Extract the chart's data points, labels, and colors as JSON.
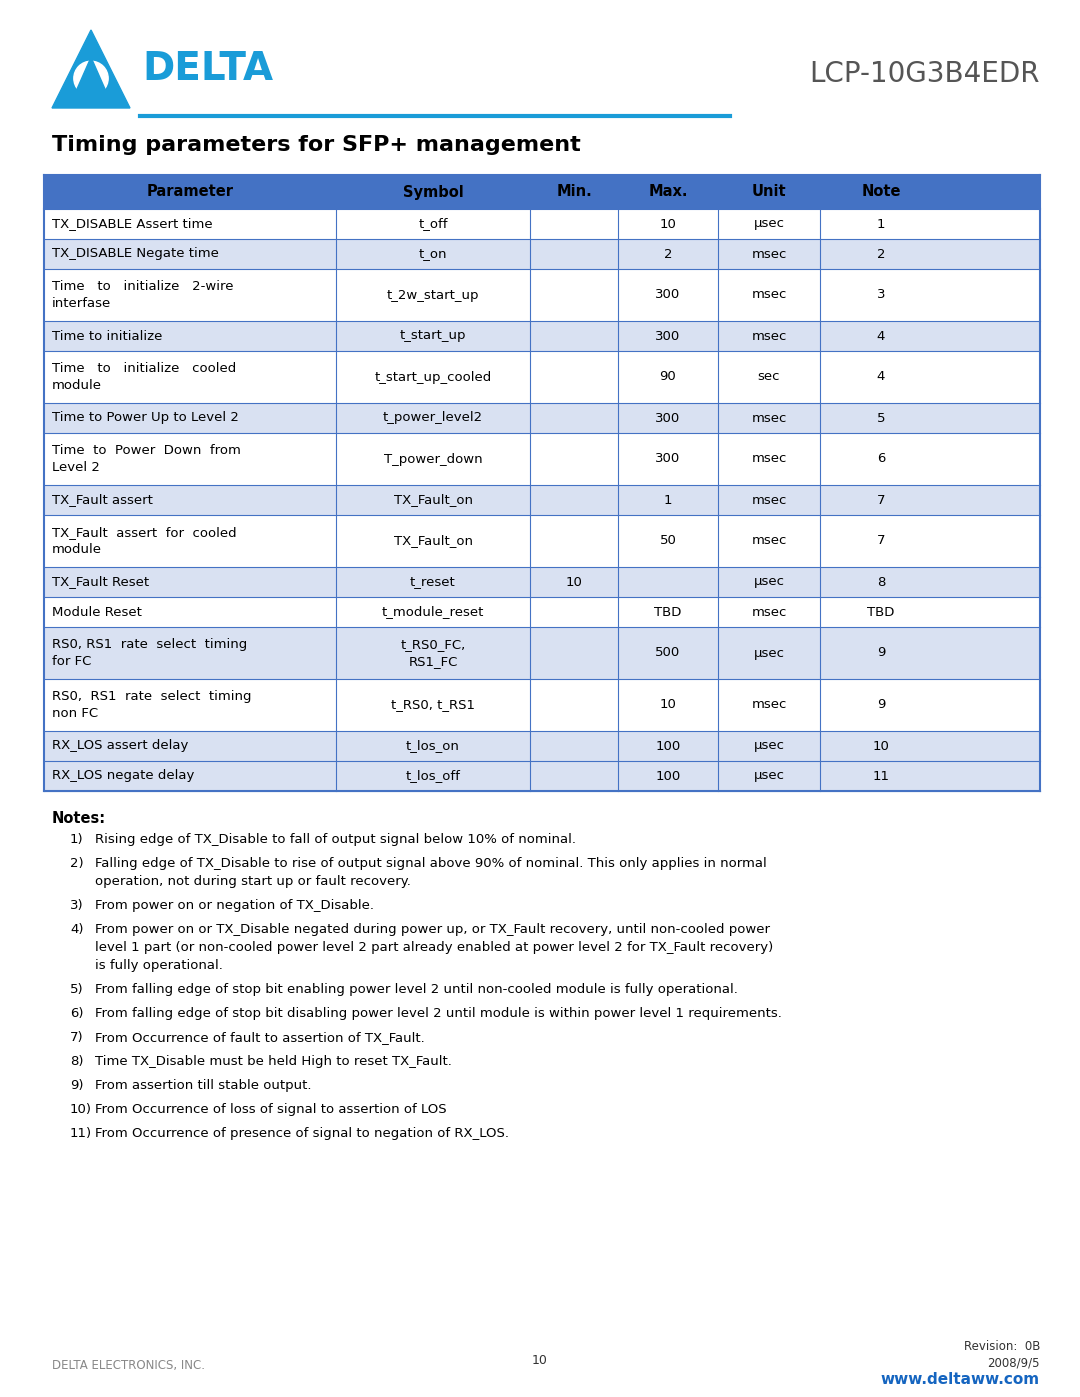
{
  "title": "Timing parameters for SFP+ management",
  "model": "LCP-10G3B4EDR",
  "header": [
    "Parameter",
    "Symbol",
    "Min.",
    "Max.",
    "Unit",
    "Note"
  ],
  "rows": [
    [
      "TX_DISABLE Assert time",
      "t_off",
      "",
      "10",
      "µsec",
      "1"
    ],
    [
      "TX_DISABLE Negate time",
      "t_on",
      "",
      "2",
      "msec",
      "2"
    ],
    [
      "Time   to   initialize   2-wire\ninterfase",
      "t_2w_start_up",
      "",
      "300",
      "msec",
      "3"
    ],
    [
      "Time to initialize",
      "t_start_up",
      "",
      "300",
      "msec",
      "4"
    ],
    [
      "Time   to   initialize   cooled\nmodule",
      "t_start_up_cooled",
      "",
      "90",
      "sec",
      "4"
    ],
    [
      "Time to Power Up to Level 2",
      "t_power_level2",
      "",
      "300",
      "msec",
      "5"
    ],
    [
      "Time  to  Power  Down  from\nLevel 2",
      "T_power_down",
      "",
      "300",
      "msec",
      "6"
    ],
    [
      "TX_Fault assert",
      "TX_Fault_on",
      "",
      "1",
      "msec",
      "7"
    ],
    [
      "TX_Fault  assert  for  cooled\nmodule",
      "TX_Fault_on",
      "",
      "50",
      "msec",
      "7"
    ],
    [
      "TX_Fault Reset",
      "t_reset",
      "10",
      "",
      "µsec",
      "8"
    ],
    [
      "Module Reset",
      "t_module_reset",
      "",
      "TBD",
      "msec",
      "TBD"
    ],
    [
      "RS0, RS1  rate  select  timing\nfor FC",
      "t_RS0_FC,\nRS1_FC",
      "",
      "500",
      "µsec",
      "9"
    ],
    [
      "RS0,  RS1  rate  select  timing\nnon FC",
      "t_RS0, t_RS1",
      "",
      "10",
      "msec",
      "9"
    ],
    [
      "RX_LOS assert delay",
      "t_los_on",
      "",
      "100",
      "µsec",
      "10"
    ],
    [
      "RX_LOS negate delay",
      "t_los_off",
      "",
      "100",
      "µsec",
      "11"
    ]
  ],
  "shaded_rows": [
    1,
    3,
    5,
    7,
    9,
    11,
    13,
    14
  ],
  "notes_title": "Notes:",
  "notes": [
    "Rising edge of TX_Disable to fall of output signal below 10% of nominal.",
    "Falling edge of TX_Disable to rise of output signal above 90% of nominal. This only applies in normal\noperation, not during start up or fault recovery.",
    "From power on or negation of TX_Disable.",
    "From power on or TX_Disable negated during power up, or TX_Fault recovery, until non-cooled power\nlevel 1 part (or non-cooled power level 2 part already enabled at power level 2 for TX_Fault recovery)\nis fully operational.",
    "From falling edge of stop bit enabling power level 2 until non-cooled module is fully operational.",
    "From falling edge of stop bit disabling power level 2 until module is within power level 1 requirements.",
    "From Occurrence of fault to assertion of TX_Fault.",
    "Time TX_Disable must be held High to reset TX_Fault.",
    "From assertion till stable output.",
    "From Occurrence of loss of signal to assertion of LOS",
    "From Occurrence of presence of signal to negation of RX_LOS."
  ],
  "footer_left": "DELTA ELECTRONICS, INC.",
  "footer_page": "10",
  "footer_right1": "Revision:  0B",
  "footer_right2": "2008/9/5",
  "footer_url": "www.deltaww.com",
  "bg_color": "#ffffff",
  "header_bg": "#4472c4",
  "shade_bg": "#d9e1f2",
  "white_bg": "#ffffff",
  "border_color": "#4472c4",
  "url_color": "#1565c0"
}
